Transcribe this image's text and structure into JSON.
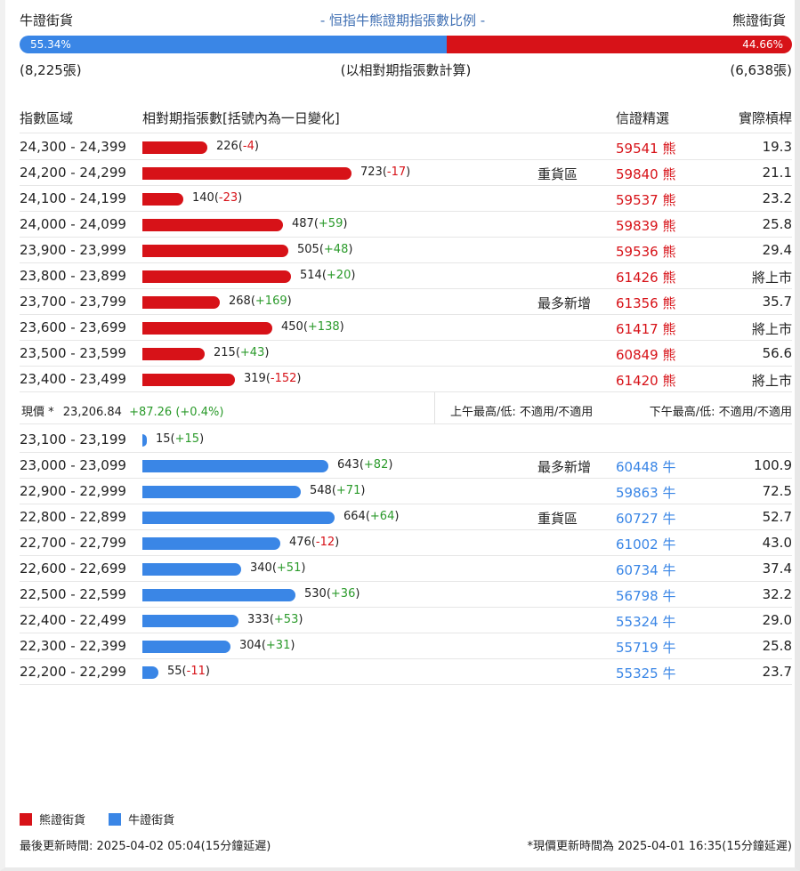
{
  "header": {
    "bull_label": "牛證街貨",
    "title": "- 恒指牛熊證期指張數比例 -",
    "bear_label": "熊證街貨"
  },
  "ratio": {
    "bull_pct": "55.34%",
    "bear_pct": "44.66%",
    "bull_fraction": 0.5534
  },
  "subheader": {
    "bull_count": "(8,225張)",
    "note": "(以相對期指張數計算)",
    "bear_count": "(6,638張)"
  },
  "table_header": {
    "range": "指數區域",
    "contracts": "相對期指張數[括號內為一日變化]",
    "pick": "信證精選",
    "leverage": "實際槓桿"
  },
  "bear_rows": [
    {
      "range": "24,300 - 24,399",
      "count": "226",
      "change": "-4",
      "value": 226,
      "tag": "",
      "code": "59541 熊",
      "lev": "19.3"
    },
    {
      "range": "24,200 - 24,299",
      "count": "723",
      "change": "-17",
      "value": 723,
      "tag": "重貨區",
      "code": "59840 熊",
      "lev": "21.1"
    },
    {
      "range": "24,100 - 24,199",
      "count": "140",
      "change": "-23",
      "value": 140,
      "tag": "",
      "code": "59537 熊",
      "lev": "23.2"
    },
    {
      "range": "24,000 - 24,099",
      "count": "487",
      "change": "+59",
      "value": 487,
      "tag": "",
      "code": "59839 熊",
      "lev": "25.8"
    },
    {
      "range": "23,900 - 23,999",
      "count": "505",
      "change": "+48",
      "value": 505,
      "tag": "",
      "code": "59536 熊",
      "lev": "29.4"
    },
    {
      "range": "23,800 - 23,899",
      "count": "514",
      "change": "+20",
      "value": 514,
      "tag": "",
      "code": "61426 熊",
      "lev": "將上市"
    },
    {
      "range": "23,700 - 23,799",
      "count": "268",
      "change": "+169",
      "value": 268,
      "tag": "最多新增",
      "code": "61356 熊",
      "lev": "35.7"
    },
    {
      "range": "23,600 - 23,699",
      "count": "450",
      "change": "+138",
      "value": 450,
      "tag": "",
      "code": "61417 熊",
      "lev": "將上市"
    },
    {
      "range": "23,500 - 23,599",
      "count": "215",
      "change": "+43",
      "value": 215,
      "tag": "",
      "code": "60849 熊",
      "lev": "56.6"
    },
    {
      "range": "23,400 - 23,499",
      "count": "319",
      "change": "-152",
      "value": 319,
      "tag": "",
      "code": "61420 熊",
      "lev": "將上市"
    }
  ],
  "current": {
    "label": "現價 *",
    "price": "23,206.84",
    "change": "+87.26 (+0.4%)",
    "am": "上午最高/低: 不適用/不適用",
    "pm": "下午最高/低: 不適用/不適用"
  },
  "bull_rows": [
    {
      "range": "23,100 - 23,199",
      "count": "15",
      "change": "+15",
      "value": 15,
      "tag": "",
      "code": "",
      "lev": ""
    },
    {
      "range": "23,000 - 23,099",
      "count": "643",
      "change": "+82",
      "value": 643,
      "tag": "最多新增",
      "code": "60448 牛",
      "lev": "100.9"
    },
    {
      "range": "22,900 - 22,999",
      "count": "548",
      "change": "+71",
      "value": 548,
      "tag": "",
      "code": "59863 牛",
      "lev": "72.5"
    },
    {
      "range": "22,800 - 22,899",
      "count": "664",
      "change": "+64",
      "value": 664,
      "tag": "重貨區",
      "code": "60727 牛",
      "lev": "52.7"
    },
    {
      "range": "22,700 - 22,799",
      "count": "476",
      "change": "-12",
      "value": 476,
      "tag": "",
      "code": "61002 牛",
      "lev": "43.0"
    },
    {
      "range": "22,600 - 22,699",
      "count": "340",
      "change": "+51",
      "value": 340,
      "tag": "",
      "code": "60734 牛",
      "lev": "37.4"
    },
    {
      "range": "22,500 - 22,599",
      "count": "530",
      "change": "+36",
      "value": 530,
      "tag": "",
      "code": "56798 牛",
      "lev": "32.2"
    },
    {
      "range": "22,400 - 22,499",
      "count": "333",
      "change": "+53",
      "value": 333,
      "tag": "",
      "code": "55324 牛",
      "lev": "29.0"
    },
    {
      "range": "22,300 - 22,399",
      "count": "304",
      "change": "+31",
      "value": 304,
      "tag": "",
      "code": "55719 牛",
      "lev": "25.8"
    },
    {
      "range": "22,200 - 22,299",
      "count": "55",
      "change": "-11",
      "value": 55,
      "tag": "",
      "code": "55325 牛",
      "lev": "23.7"
    }
  ],
  "legend": {
    "bear": "熊證街貨",
    "bull": "牛證街貨"
  },
  "footer": {
    "updated": "最後更新時間: 2025-04-02 05:04(15分鐘延遲)",
    "price_updated": "*現價更新時間為 2025-04-01 16:35(15分鐘延遲)"
  },
  "colors": {
    "bear": "#d71218",
    "bull": "#3a86e6",
    "up": "#2a9a2a"
  }
}
